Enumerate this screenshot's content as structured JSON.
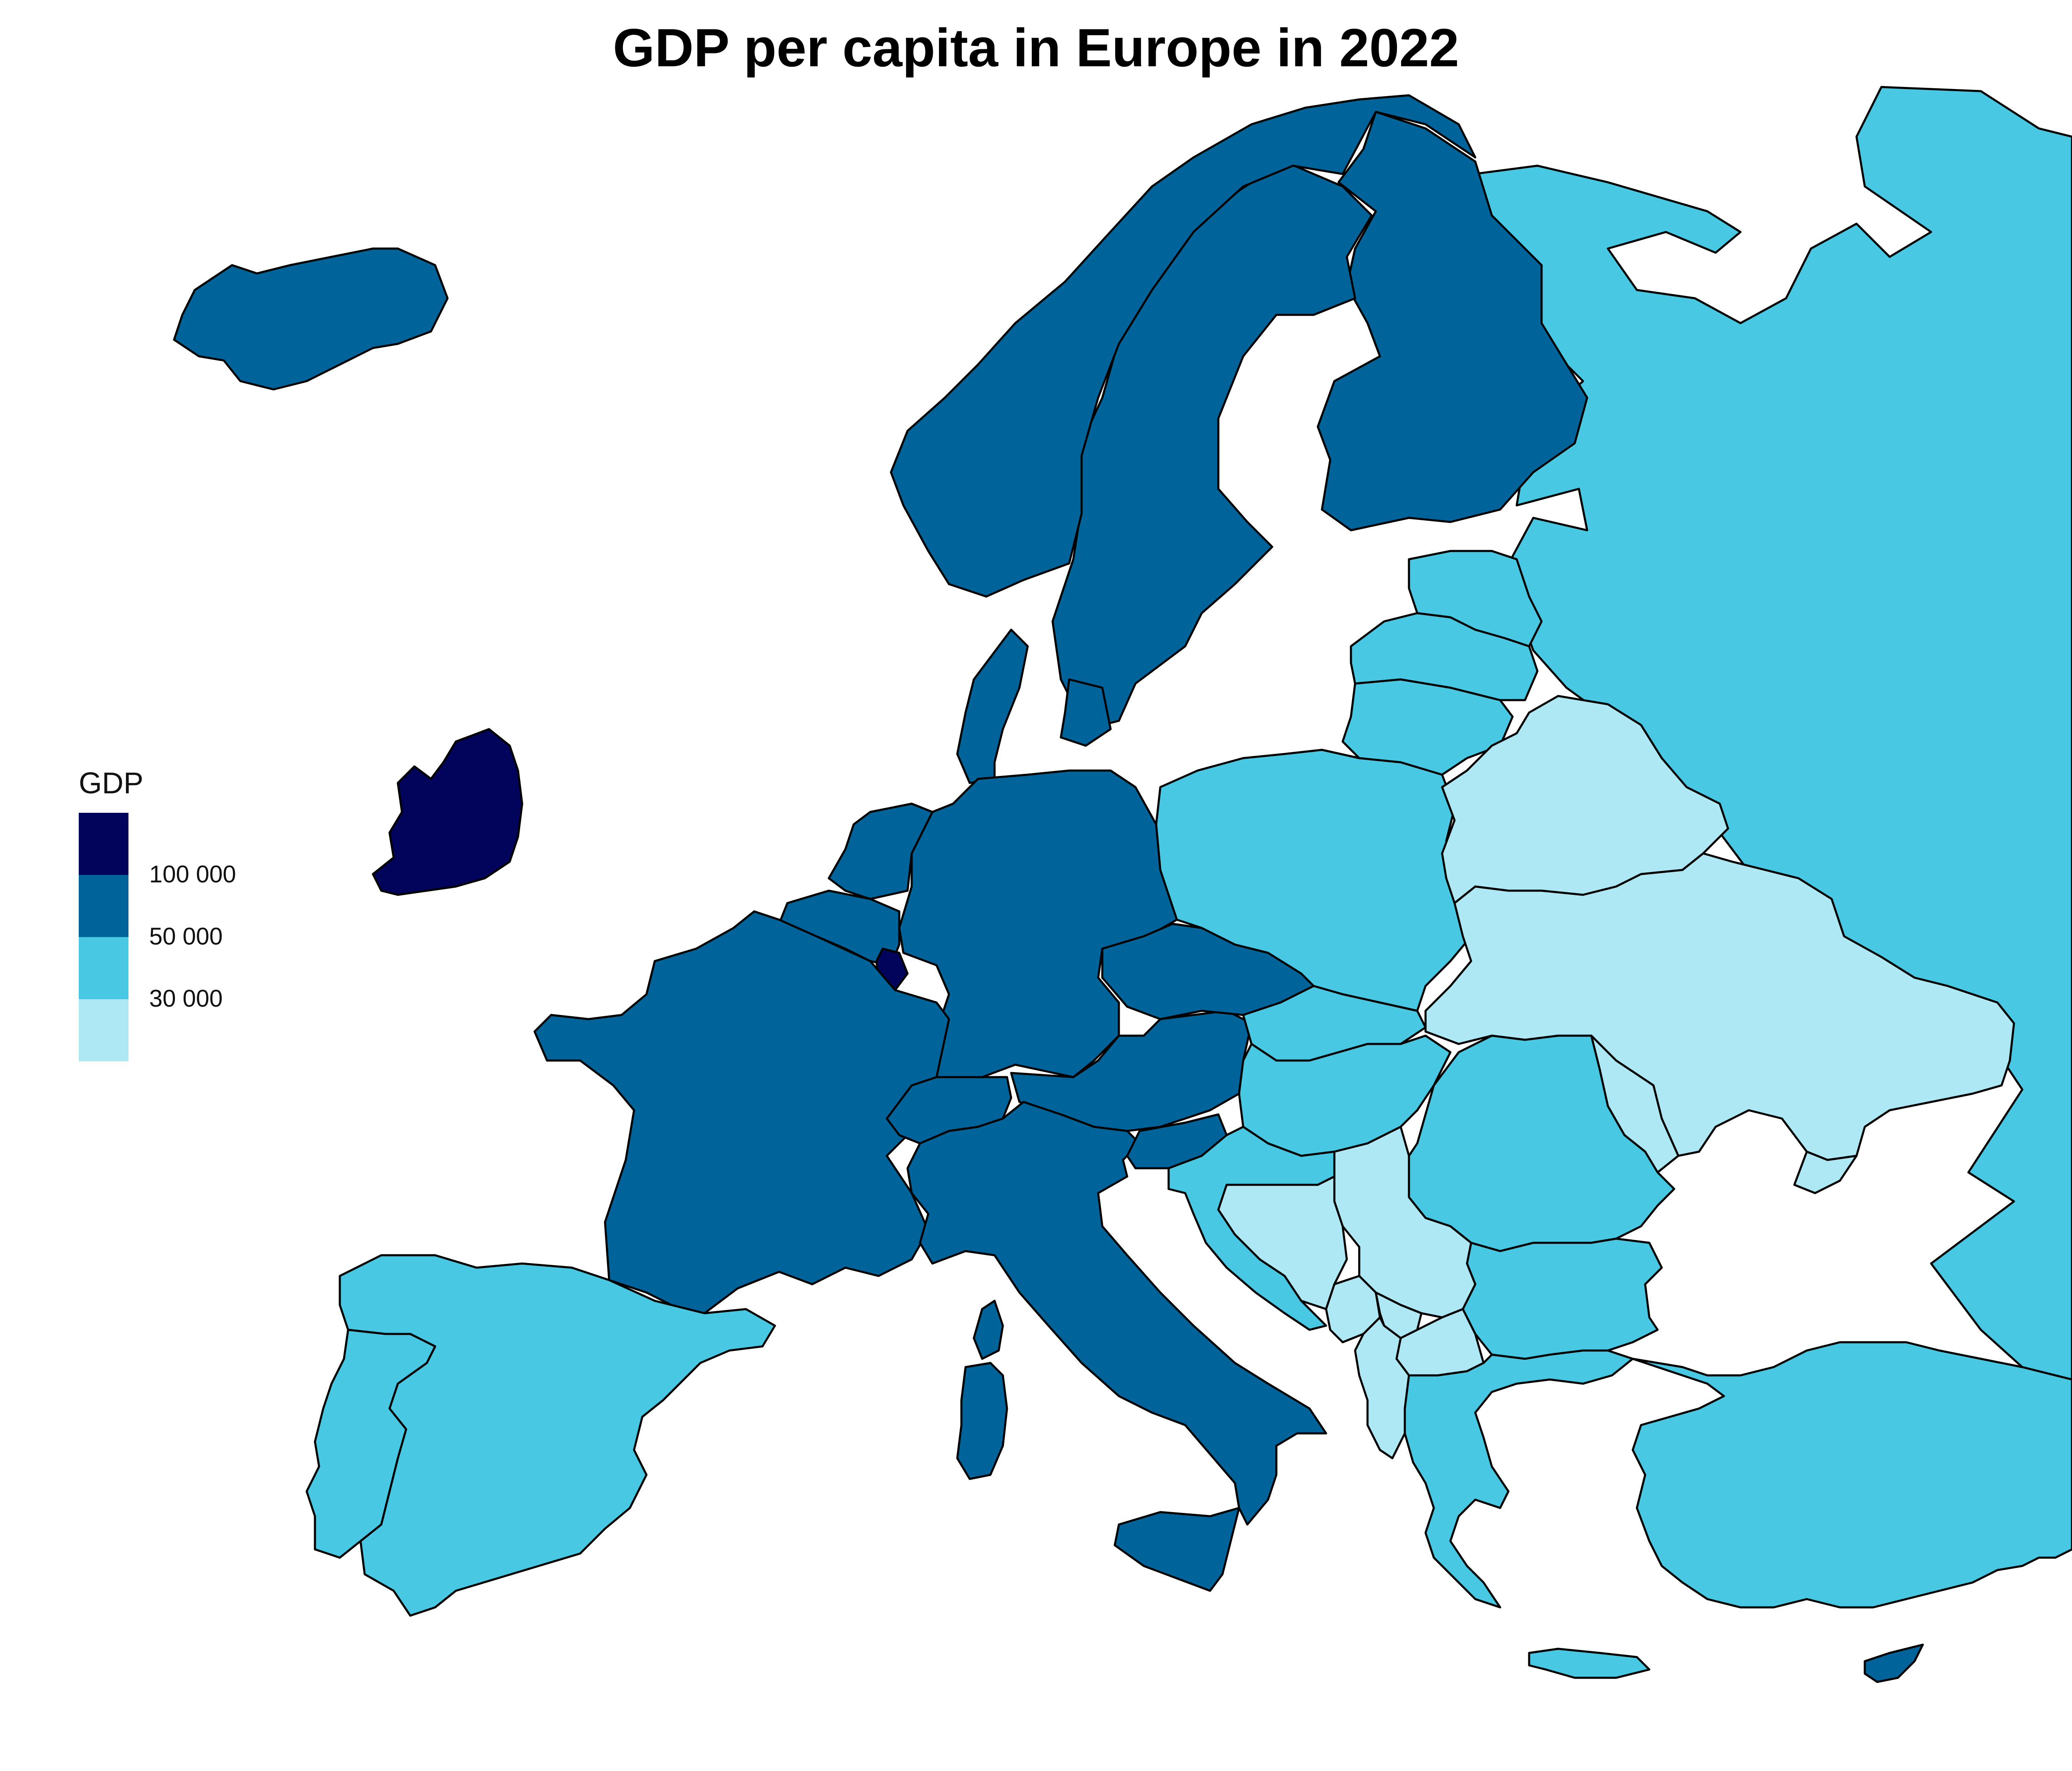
{
  "title": "GDP per capita in Europe in 2022",
  "legend": {
    "title": "GDP",
    "bins": [
      {
        "range": "above 100 000",
        "color": "#02045c"
      },
      {
        "range": "50 000 - 100 000",
        "color": "#006399"
      },
      {
        "range": "30 000 - 50 000",
        "color": "#48c8e3"
      },
      {
        "range": "below 30 000",
        "color": "#aee8f4"
      }
    ],
    "breaks": [
      "100 000",
      "50 000",
      "30 000"
    ]
  },
  "map_data": {
    "type": "choropleth",
    "variable": "GDP per capita (2022)",
    "regions": [
      {
        "name": "Ireland",
        "bin": 0
      },
      {
        "name": "Luxembourg",
        "bin": 0
      },
      {
        "name": "Iceland",
        "bin": 1
      },
      {
        "name": "Norway",
        "bin": 1
      },
      {
        "name": "Sweden",
        "bin": 1
      },
      {
        "name": "Finland",
        "bin": 1
      },
      {
        "name": "Denmark",
        "bin": 1
      },
      {
        "name": "Netherlands",
        "bin": 1
      },
      {
        "name": "Belgium",
        "bin": 1
      },
      {
        "name": "Germany",
        "bin": 1
      },
      {
        "name": "Austria",
        "bin": 1
      },
      {
        "name": "Switzerland",
        "bin": 1
      },
      {
        "name": "France",
        "bin": 1
      },
      {
        "name": "Italy",
        "bin": 1
      },
      {
        "name": "Czechia",
        "bin": 1
      },
      {
        "name": "Slovenia",
        "bin": 1
      },
      {
        "name": "Cyprus",
        "bin": 1
      },
      {
        "name": "Spain",
        "bin": 2
      },
      {
        "name": "Portugal",
        "bin": 2
      },
      {
        "name": "Poland",
        "bin": 2
      },
      {
        "name": "Slovakia",
        "bin": 2
      },
      {
        "name": "Hungary",
        "bin": 2
      },
      {
        "name": "Romania",
        "bin": 2
      },
      {
        "name": "Bulgaria",
        "bin": 2
      },
      {
        "name": "Croatia",
        "bin": 2
      },
      {
        "name": "Greece",
        "bin": 2
      },
      {
        "name": "Turkey",
        "bin": 2
      },
      {
        "name": "Russia",
        "bin": 2
      },
      {
        "name": "Estonia",
        "bin": 2
      },
      {
        "name": "Latvia",
        "bin": 2
      },
      {
        "name": "Lithuania",
        "bin": 2
      },
      {
        "name": "Belarus",
        "bin": 3
      },
      {
        "name": "Ukraine",
        "bin": 3
      },
      {
        "name": "Moldova",
        "bin": 3
      },
      {
        "name": "Serbia",
        "bin": 3
      },
      {
        "name": "Bosnia and Herzegovina",
        "bin": 3
      },
      {
        "name": "Montenegro",
        "bin": 3
      },
      {
        "name": "Albania",
        "bin": 3
      },
      {
        "name": "North Macedonia",
        "bin": 3
      },
      {
        "name": "Kosovo",
        "bin": 3
      }
    ]
  }
}
